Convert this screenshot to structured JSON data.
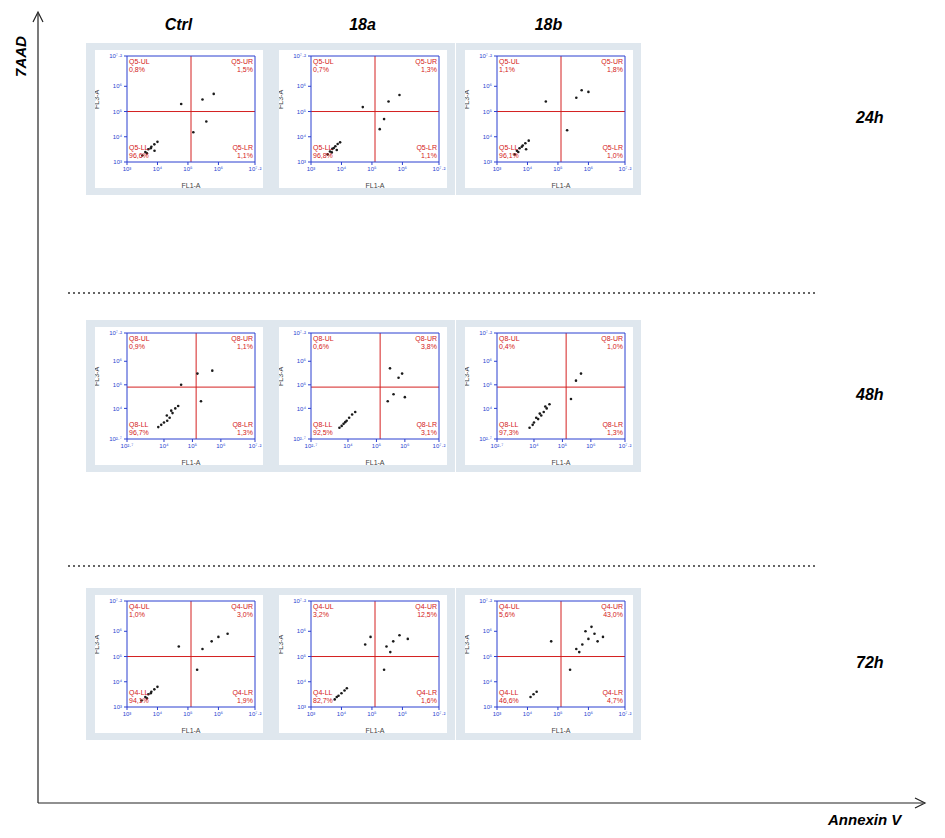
{
  "column_headers": [
    "Ctrl",
    "18a",
    "18b"
  ],
  "row_labels": [
    "24h",
    "48h",
    "72h"
  ],
  "x_axis_title": "Annexin V",
  "y_axis_title": "7AAD",
  "chart_data": [
    {
      "type": "scatter",
      "x_label": "FL1-A",
      "y_label": "FL3-A",
      "log": true,
      "color": "#1a1a1a",
      "xlim": [
        1000,
        15848932
      ],
      "ylim": [
        1000,
        15848932
      ],
      "xticks": [
        {
          "value": 1000,
          "label": "10³"
        },
        {
          "value": 10000,
          "label": "10⁴"
        },
        {
          "value": 100000,
          "label": "10⁵"
        },
        {
          "value": 1000000,
          "label": "10⁶"
        },
        {
          "value": 15848932,
          "label": "10⁷·²"
        }
      ],
      "yticks": [
        {
          "value": 1000,
          "label": "10³"
        },
        {
          "value": 10000,
          "label": "10⁴"
        },
        {
          "value": 100000,
          "label": "10⁵"
        },
        {
          "value": 1000000,
          "label": "10⁶"
        },
        {
          "value": 15848932,
          "label": "10⁷·²"
        }
      ],
      "gate": {
        "x": 126000,
        "y": 100000
      },
      "quadrants": [
        {
          "name": "Q5-UL",
          "value": 0.8,
          "label": "0,8%"
        },
        {
          "name": "Q5-UR",
          "value": 1.5,
          "label": "1,5%"
        },
        {
          "name": "Q5-LL",
          "value": 96.6,
          "label": "96,6%"
        },
        {
          "name": "Q5-LR",
          "value": 1.1,
          "label": "1,1%"
        }
      ],
      "x": [
        3200,
        4000,
        5000,
        6300,
        7900,
        10000,
        4500,
        6000,
        8000,
        150000,
        300000,
        700000,
        60000,
        400000
      ],
      "y": [
        1800,
        2500,
        3200,
        4000,
        5000,
        6300,
        2200,
        3500,
        2800,
        15000,
        300000,
        500000,
        200000,
        40000
      ]
    },
    {
      "type": "scatter",
      "x_label": "FL1-A",
      "y_label": "FL3-A",
      "log": true,
      "color": "#1a1a1a",
      "xlim": [
        1000,
        15848932
      ],
      "ylim": [
        1000,
        15848932
      ],
      "xticks": [
        {
          "value": 1000,
          "label": "10³"
        },
        {
          "value": 10000,
          "label": "10⁴"
        },
        {
          "value": 100000,
          "label": "10⁵"
        },
        {
          "value": 1000000,
          "label": "10⁶"
        },
        {
          "value": 15848932,
          "label": "10⁷·²"
        }
      ],
      "yticks": [
        {
          "value": 1000,
          "label": "10³"
        },
        {
          "value": 10000,
          "label": "10⁴"
        },
        {
          "value": 100000,
          "label": "10⁵"
        },
        {
          "value": 1000000,
          "label": "10⁶"
        },
        {
          "value": 15848932,
          "label": "10⁷·²"
        }
      ],
      "gate": {
        "x": 126000,
        "y": 100000
      },
      "quadrants": [
        {
          "name": "Q5-UL",
          "value": 0.7,
          "label": "0,7%"
        },
        {
          "name": "Q5-UR",
          "value": 1.3,
          "label": "1,3%"
        },
        {
          "name": "Q5-LL",
          "value": 96.8,
          "label": "96,8%"
        },
        {
          "name": "Q5-LR",
          "value": 1.1,
          "label": "1,1%"
        }
      ],
      "x": [
        3500,
        4200,
        5000,
        6300,
        7500,
        9000,
        4800,
        5600,
        7000,
        180000,
        350000,
        800000,
        50000,
        250000
      ],
      "y": [
        2000,
        2600,
        3300,
        4200,
        5200,
        6000,
        2400,
        3600,
        3000,
        20000,
        250000,
        450000,
        150000,
        50000
      ]
    },
    {
      "type": "scatter",
      "x_label": "FL1-A",
      "y_label": "FL3-A",
      "log": true,
      "color": "#1a1a1a",
      "xlim": [
        1000,
        15848932
      ],
      "ylim": [
        1000,
        15848932
      ],
      "xticks": [
        {
          "value": 1000,
          "label": "10³"
        },
        {
          "value": 10000,
          "label": "10⁴"
        },
        {
          "value": 100000,
          "label": "10⁵"
        },
        {
          "value": 1000000,
          "label": "10⁶"
        },
        {
          "value": 15848932,
          "label": "10⁷·²"
        }
      ],
      "yticks": [
        {
          "value": 1000,
          "label": "10³"
        },
        {
          "value": 10000,
          "label": "10⁴"
        },
        {
          "value": 100000,
          "label": "10⁵"
        },
        {
          "value": 1000000,
          "label": "10⁶"
        },
        {
          "value": 15848932,
          "label": "10⁷·²"
        }
      ],
      "gate": {
        "x": 126000,
        "y": 100000
      },
      "quadrants": [
        {
          "name": "Q5-UL",
          "value": 1.1,
          "label": "1,1%"
        },
        {
          "name": "Q5-UR",
          "value": 1.8,
          "label": "1,8%"
        },
        {
          "name": "Q5-LL",
          "value": 96.1,
          "label": "96,1%"
        },
        {
          "name": "Q5-LR",
          "value": 1.0,
          "label": "1,0%"
        }
      ],
      "x": [
        3800,
        4500,
        5500,
        7000,
        8500,
        11000,
        5000,
        6500,
        9000,
        200000,
        400000,
        1000000,
        40000,
        600000
      ],
      "y": [
        2000,
        2800,
        3500,
        4500,
        5500,
        7000,
        2500,
        4000,
        3200,
        18000,
        350000,
        600000,
        250000,
        700000
      ]
    },
    {
      "type": "scatter",
      "x_label": "FL1-A",
      "y_label": "FL3-A",
      "log": true,
      "color": "#1a1a1a",
      "xlim": [
        501,
        15848932
      ],
      "ylim": [
        501,
        15848932
      ],
      "xticks": [
        {
          "value": 501,
          "label": "10²·⁷"
        },
        {
          "value": 10000,
          "label": "10⁴"
        },
        {
          "value": 100000,
          "label": "10⁵"
        },
        {
          "value": 1000000,
          "label": "10⁶"
        },
        {
          "value": 15848932,
          "label": "10⁷·²"
        }
      ],
      "yticks": [
        {
          "value": 501,
          "label": "10²·⁷"
        },
        {
          "value": 10000,
          "label": "10⁴"
        },
        {
          "value": 100000,
          "label": "10⁵"
        },
        {
          "value": 1000000,
          "label": "10⁶"
        },
        {
          "value": 15848932,
          "label": "10⁷·²"
        }
      ],
      "gate": {
        "x": 135000,
        "y": 80000
      },
      "quadrants": [
        {
          "name": "Q8-UL",
          "value": 0.9,
          "label": "0,9%"
        },
        {
          "name": "Q8-UR",
          "value": 1.1,
          "label": "1,1%"
        },
        {
          "name": "Q8-LL",
          "value": 96.7,
          "label": "96,7%"
        },
        {
          "name": "Q8-LR",
          "value": 1.3,
          "label": "1,3%"
        }
      ],
      "x": [
        6300,
        10000,
        15800,
        20000,
        25000,
        12600,
        8000,
        31600,
        200000,
        500000,
        150000,
        40000,
        13000,
        18000
      ],
      "y": [
        1600,
        2500,
        4000,
        6300,
        10000,
        5000,
        2000,
        12600,
        20000,
        400000,
        300000,
        100000,
        3000,
        8000
      ]
    },
    {
      "type": "scatter",
      "x_label": "FL1-A",
      "y_label": "FL3-A",
      "log": true,
      "color": "#1a1a1a",
      "xlim": [
        501,
        15848932
      ],
      "ylim": [
        501,
        15848932
      ],
      "xticks": [
        {
          "value": 501,
          "label": "10²·⁷"
        },
        {
          "value": 10000,
          "label": "10⁴"
        },
        {
          "value": 100000,
          "label": "10⁵"
        },
        {
          "value": 1000000,
          "label": "10⁶"
        },
        {
          "value": 15848932,
          "label": "10⁷·²"
        }
      ],
      "yticks": [
        {
          "value": 501,
          "label": "10²·⁷"
        },
        {
          "value": 10000,
          "label": "10⁴"
        },
        {
          "value": 100000,
          "label": "10⁵"
        },
        {
          "value": 1000000,
          "label": "10⁶"
        },
        {
          "value": 15848932,
          "label": "10⁷·²"
        }
      ],
      "gate": {
        "x": 135000,
        "y": 80000
      },
      "quadrants": [
        {
          "name": "Q8-UL",
          "value": 0.6,
          "label": "0,6%"
        },
        {
          "name": "Q8-UR",
          "value": 3.8,
          "label": "3,8%"
        },
        {
          "name": "Q8-LL",
          "value": 92.5,
          "label": "92,5%"
        },
        {
          "name": "Q8-LR",
          "value": 3.1,
          "label": "3,1%"
        }
      ],
      "x": [
        5000,
        7000,
        9000,
        11000,
        14000,
        18000,
        6000,
        8000,
        250000,
        400000,
        800000,
        300000,
        600000,
        1000000
      ],
      "y": [
        1500,
        2200,
        3000,
        4000,
        5500,
        7000,
        1800,
        2600,
        20000,
        40000,
        300000,
        500000,
        200000,
        30000
      ]
    },
    {
      "type": "scatter",
      "x_label": "FL1-A",
      "y_label": "FL3-A",
      "log": true,
      "color": "#1a1a1a",
      "xlim": [
        501,
        15848932
      ],
      "ylim": [
        501,
        15848932
      ],
      "xticks": [
        {
          "value": 501,
          "label": "10²·⁷"
        },
        {
          "value": 10000,
          "label": "10⁴"
        },
        {
          "value": 100000,
          "label": "10⁵"
        },
        {
          "value": 1000000,
          "label": "10⁶"
        },
        {
          "value": 15848932,
          "label": "10⁷·²"
        }
      ],
      "yticks": [
        {
          "value": 501,
          "label": "10²·⁷"
        },
        {
          "value": 10000,
          "label": "10⁴"
        },
        {
          "value": 100000,
          "label": "10⁵"
        },
        {
          "value": 1000000,
          "label": "10⁶"
        },
        {
          "value": 15848932,
          "label": "10⁷·²"
        }
      ],
      "gate": {
        "x": 135000,
        "y": 80000
      },
      "quadrants": [
        {
          "name": "Q8-UL",
          "value": 0.4,
          "label": "0,4%"
        },
        {
          "name": "Q8-UR",
          "value": 1.0,
          "label": "1,0%"
        },
        {
          "name": "Q8-LL",
          "value": 97.3,
          "label": "97,3%"
        },
        {
          "name": "Q8-LR",
          "value": 1.3,
          "label": "1,3%"
        }
      ],
      "x": [
        7000,
        10000,
        14000,
        18000,
        22000,
        28000,
        12000,
        9000,
        35000,
        200000,
        450000,
        300000,
        16000,
        25000
      ],
      "y": [
        1500,
        2500,
        3500,
        5000,
        7000,
        10000,
        4000,
        2000,
        15000,
        25000,
        300000,
        150000,
        6000,
        12000
      ]
    },
    {
      "type": "scatter",
      "x_label": "FL1-A",
      "y_label": "FL3-A",
      "log": true,
      "color": "#1a1a1a",
      "xlim": [
        1000,
        15848932
      ],
      "ylim": [
        1000,
        15848932
      ],
      "xticks": [
        {
          "value": 1000,
          "label": "10³"
        },
        {
          "value": 10000,
          "label": "10⁴"
        },
        {
          "value": 100000,
          "label": "10⁵"
        },
        {
          "value": 1000000,
          "label": "10⁶"
        },
        {
          "value": 15848932,
          "label": "10⁷·²"
        }
      ],
      "yticks": [
        {
          "value": 1000,
          "label": "10³"
        },
        {
          "value": 10000,
          "label": "10⁴"
        },
        {
          "value": 100000,
          "label": "10⁵"
        },
        {
          "value": 1000000,
          "label": "10⁶"
        },
        {
          "value": 15848932,
          "label": "10⁷·²"
        }
      ],
      "gate": {
        "x": 126000,
        "y": 100000
      },
      "quadrants": [
        {
          "name": "Q4-UL",
          "value": 1.0,
          "label": "1,0%"
        },
        {
          "name": "Q4-UR",
          "value": 3.0,
          "label": "3,0%"
        },
        {
          "name": "Q4-LL",
          "value": 94.1,
          "label": "94,1%"
        },
        {
          "name": "Q4-LR",
          "value": 1.9,
          "label": "1,9%"
        }
      ],
      "x": [
        3000,
        4000,
        5000,
        6300,
        7900,
        10000,
        4500,
        6000,
        300000,
        600000,
        1000000,
        2000000,
        200000,
        50000
      ],
      "y": [
        1800,
        2500,
        3200,
        4000,
        5000,
        6300,
        2200,
        3500,
        200000,
        400000,
        600000,
        800000,
        30000,
        250000
      ]
    },
    {
      "type": "scatter",
      "x_label": "FL1-A",
      "y_label": "FL3-A",
      "log": true,
      "color": "#1a1a1a",
      "xlim": [
        1000,
        15848932
      ],
      "ylim": [
        1000,
        15848932
      ],
      "xticks": [
        {
          "value": 1000,
          "label": "10³"
        },
        {
          "value": 10000,
          "label": "10⁴"
        },
        {
          "value": 100000,
          "label": "10⁵"
        },
        {
          "value": 1000000,
          "label": "10⁶"
        },
        {
          "value": 15848932,
          "label": "10⁷·²"
        }
      ],
      "yticks": [
        {
          "value": 1000,
          "label": "10³"
        },
        {
          "value": 10000,
          "label": "10⁴"
        },
        {
          "value": 100000,
          "label": "10⁵"
        },
        {
          "value": 1000000,
          "label": "10⁶"
        },
        {
          "value": 15848932,
          "label": "10⁷·²"
        }
      ],
      "gate": {
        "x": 126000,
        "y": 100000
      },
      "quadrants": [
        {
          "name": "Q4-UL",
          "value": 3.2,
          "label": "3,2%"
        },
        {
          "name": "Q4-UR",
          "value": 12.5,
          "label": "12,5%"
        },
        {
          "name": "Q4-LL",
          "value": 82.7,
          "label": "82,7%"
        },
        {
          "name": "Q4-LR",
          "value": 1.6,
          "label": "1,6%"
        }
      ],
      "x": [
        6000,
        8000,
        10000,
        12600,
        15000,
        7000,
        300000,
        500000,
        800000,
        1500000,
        400000,
        60000,
        90000,
        250000
      ],
      "y": [
        2000,
        2800,
        3500,
        4500,
        5500,
        2500,
        250000,
        400000,
        700000,
        500000,
        150000,
        300000,
        600000,
        30000
      ]
    },
    {
      "type": "scatter",
      "x_label": "FL1-A",
      "y_label": "FL3-A",
      "log": true,
      "color": "#1a1a1a",
      "xlim": [
        1000,
        15848932
      ],
      "ylim": [
        1000,
        15848932
      ],
      "xticks": [
        {
          "value": 1000,
          "label": "10³"
        },
        {
          "value": 10000,
          "label": "10⁴"
        },
        {
          "value": 100000,
          "label": "10⁵"
        },
        {
          "value": 1000000,
          "label": "10⁶"
        },
        {
          "value": 15848932,
          "label": "10⁷·²"
        }
      ],
      "yticks": [
        {
          "value": 1000,
          "label": "10³"
        },
        {
          "value": 10000,
          "label": "10⁴"
        },
        {
          "value": 100000,
          "label": "10⁵"
        },
        {
          "value": 1000000,
          "label": "10⁶"
        },
        {
          "value": 15848932,
          "label": "10⁷·²"
        }
      ],
      "gate": {
        "x": 126000,
        "y": 100000
      },
      "quadrants": [
        {
          "name": "Q4-UL",
          "value": 5.6,
          "label": "5,6%"
        },
        {
          "name": "Q4-UR",
          "value": 43.0,
          "label": "43,0%"
        },
        {
          "name": "Q4-LL",
          "value": 46.6,
          "label": "46,6%"
        },
        {
          "name": "Q4-LR",
          "value": 4.7,
          "label": "4,7%"
        }
      ],
      "x": [
        12600,
        15800,
        20000,
        400000,
        630000,
        1000000,
        1580000,
        800000,
        2000000,
        500000,
        250000,
        3000000,
        1260000,
        60000
      ],
      "y": [
        2500,
        3200,
        4000,
        200000,
        300000,
        500000,
        800000,
        1000000,
        400000,
        150000,
        30000,
        600000,
        1500000,
        400000
      ]
    }
  ]
}
